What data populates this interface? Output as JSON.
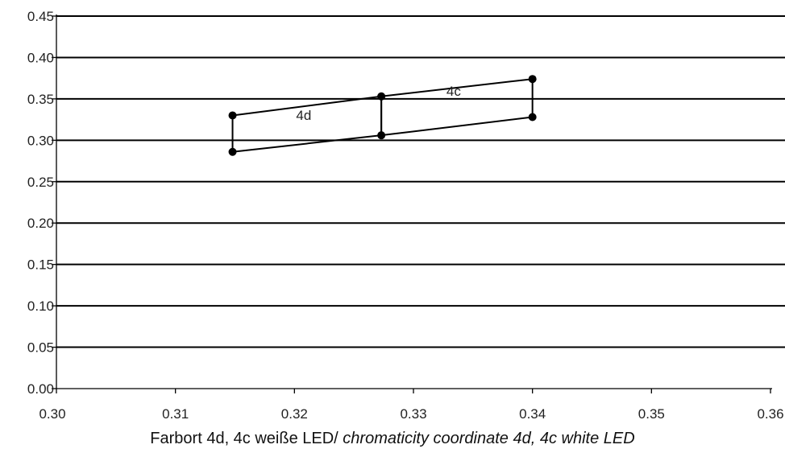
{
  "chart_data": {
    "type": "line",
    "title": "",
    "xlabel": "",
    "ylabel": "",
    "xlim": [
      0.3,
      0.36
    ],
    "ylim": [
      0.0,
      0.45
    ],
    "x_ticks": [
      "0.30",
      "0.31",
      "0.32",
      "0.33",
      "0.34",
      "0.35",
      "0.36"
    ],
    "y_ticks": [
      "0.00",
      "0.05",
      "0.10",
      "0.15",
      "0.20",
      "0.25",
      "0.30",
      "0.35",
      "0.40",
      "0.45"
    ],
    "grid": "horizontal",
    "regions": [
      {
        "name": "4d",
        "points": [
          [
            0.3148,
            0.33
          ],
          [
            0.3273,
            0.353
          ],
          [
            0.3273,
            0.306
          ],
          [
            0.3148,
            0.286
          ]
        ]
      },
      {
        "name": "4c",
        "points": [
          [
            0.3273,
            0.353
          ],
          [
            0.34,
            0.374
          ],
          [
            0.34,
            0.328
          ],
          [
            0.3273,
            0.306
          ]
        ]
      }
    ],
    "caption": {
      "text": "Farbort 4d, 4c weiße LED/ ",
      "italic": "chromaticity coordinate 4d, 4c white LED"
    }
  }
}
